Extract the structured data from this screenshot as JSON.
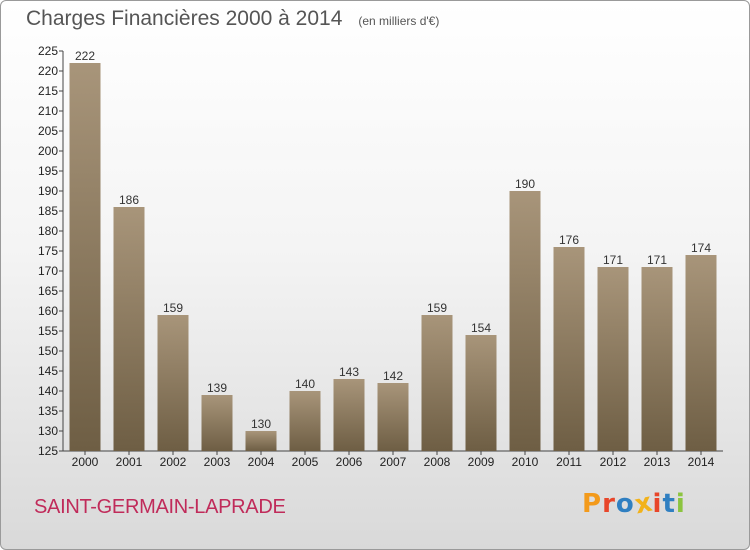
{
  "colors": {
    "bar_top": "#a8957a",
    "bar_bottom": "#6e5e44",
    "title": "#555555",
    "commune": "#c02b5a",
    "logo": [
      "#f39a1b",
      "#e8462a",
      "#2f7fc1",
      "#f2b21a",
      "#e8462a",
      "#2f7fc1",
      "#8cc43f"
    ]
  },
  "title": "Charges Financières 2000 à 2014",
  "subtitle": "(en milliers d'€)",
  "commune": "SAINT-GERMAIN-LAPRADE",
  "logo_letters": [
    "P",
    "r",
    "o",
    "x",
    "i",
    "t",
    "i"
  ],
  "chart_data": {
    "type": "bar",
    "title": "Charges Financières 2000 à 2014",
    "subtitle": "(en milliers d'€)",
    "categories": [
      "2000",
      "2001",
      "2002",
      "2003",
      "2004",
      "2005",
      "2006",
      "2007",
      "2008",
      "2009",
      "2010",
      "2011",
      "2012",
      "2013",
      "2014"
    ],
    "values": [
      222,
      186,
      159,
      139,
      130,
      140,
      143,
      142,
      159,
      154,
      190,
      176,
      171,
      171,
      174
    ],
    "ylim": [
      125,
      225
    ],
    "yticks": [
      125,
      130,
      135,
      140,
      145,
      150,
      155,
      160,
      165,
      170,
      175,
      180,
      185,
      190,
      195,
      200,
      205,
      210,
      215,
      220,
      225
    ],
    "grid": false,
    "legend": "none"
  }
}
